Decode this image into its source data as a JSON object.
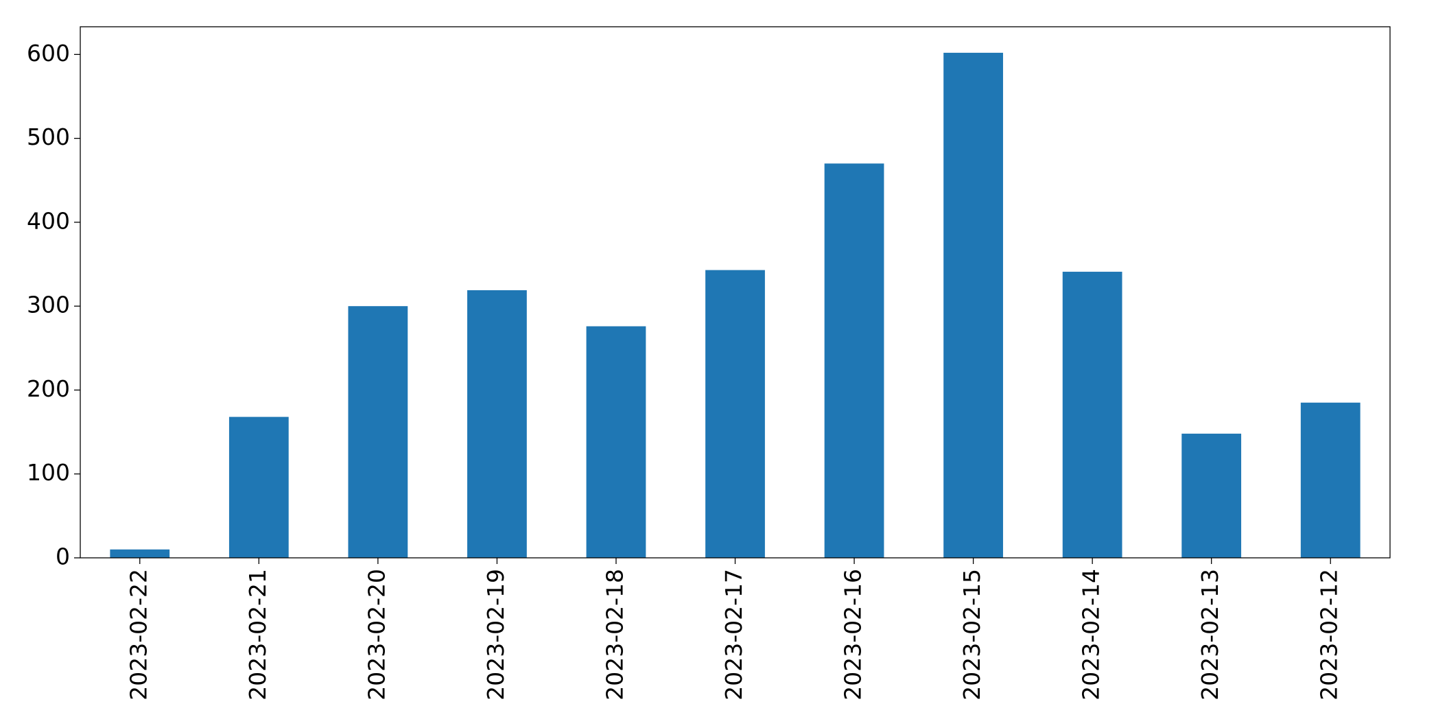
{
  "chart_data": {
    "type": "bar",
    "categories": [
      "2023-02-22",
      "2023-02-21",
      "2023-02-20",
      "2023-02-19",
      "2023-02-18",
      "2023-02-17",
      "2023-02-16",
      "2023-02-15",
      "2023-02-14",
      "2023-02-13",
      "2023-02-12"
    ],
    "values": [
      10,
      168,
      300,
      319,
      276,
      343,
      470,
      602,
      341,
      148,
      185
    ],
    "color": "#1f77b4",
    "ylim": [
      0,
      633
    ],
    "yticks": [
      0,
      100,
      200,
      300,
      400,
      500,
      600
    ],
    "grid": false
  }
}
